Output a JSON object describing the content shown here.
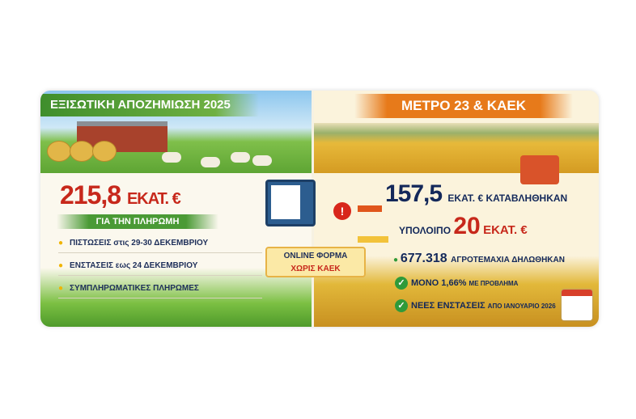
{
  "left": {
    "title": "ΕΞΙΣΩΤΙΚΗ ΑΠΟΖΗΜΙΩΣΗ 2025",
    "amount": "215,8",
    "amount_unit": "ΕΚΑΤ. €",
    "subtitle": "ΓΙΑ ΤΗΝ ΠΛΗΡΩΜΗ",
    "bullets": [
      "ΠΙΣΤΩΣΕΙΣ στις 29-30 ΔΕΚΕΜΒΡΙΟΥ",
      "ΕΝΣΤΑΣΕΙΣ εως 24 ΔΕΚΕΜΒΡΙΟΥ",
      "ΣΥΜΠΛΗΡΩΜΑΤΙΚΕΣ ΠΛΗΡΩΜΕΣ"
    ]
  },
  "center": {
    "line1": "ONLINE ΦΟΡΜΑ",
    "line2": "ΧΩΡΙΣ ΚΑΕΚ",
    "alert_icon": "exclamation-icon"
  },
  "right": {
    "title": "ΜΕΤΡΟ 23 & ΚΑΕΚ",
    "paid_amount": "157,5",
    "paid_text": "ΕΚΑΤ. € ΚΑΤΑΒΛΗΘΗΚΑΝ",
    "remaining_label": "ΥΠΟΛΟΙΠΟ",
    "remaining_amount": "20",
    "remaining_unit": "ΕΚΑΤ. €",
    "parcels_number": "677.318",
    "parcels_text": "ΑΓΡΟΤΕΜΑΧΙΑ ΔΗΛΩΘΗΚΑΝ",
    "check1_a": "ΜΟΝΟ 1,66%",
    "check1_b": "ΜΕ ΠΡΟΒΛΗΜΑ",
    "check2_a": "ΝΕΕΣ ΕΝΣΤΑΣΕΙΣ",
    "check2_b": "ΑΠΟ ΙΑΝΟΥΑΡΙΟ 2026"
  },
  "colors": {
    "green": "#4a9a35",
    "orange": "#e77a1a",
    "red": "#c7281b",
    "navy": "#13285a"
  }
}
